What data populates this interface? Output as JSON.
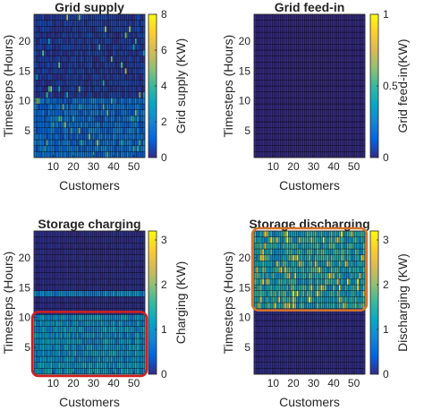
{
  "chart_data": [
    {
      "type": "heatmap",
      "title": "Grid supply",
      "xlabel": "Customers",
      "ylabel": "Timesteps (Hours)",
      "colorbar_label": "Grid supply (KW)",
      "x_ticks": [
        "10",
        "20",
        "30",
        "40",
        "50"
      ],
      "y_ticks": [
        "5",
        "10",
        "15",
        "20"
      ],
      "colorbar_ticks": [
        "0",
        "2",
        "4",
        "6",
        "8"
      ],
      "x_range": [
        1,
        55
      ],
      "y_range": [
        1,
        24
      ],
      "c_range": [
        0,
        8
      ],
      "pattern": "hours 1-10 moderate (0.5-2.5 KW) with sparse peaks; hours 11-24 low (0-0.8 KW) with sparse spikes up to ~5 KW"
    },
    {
      "type": "heatmap",
      "title": "Grid feed-in",
      "xlabel": "Customers",
      "ylabel": "Timesteps (Hours)",
      "colorbar_label": "Grid feed-in(KW)",
      "x_ticks": [
        "10",
        "20",
        "30",
        "40",
        "50"
      ],
      "y_ticks": [
        "5",
        "10",
        "15",
        "20"
      ],
      "colorbar_ticks": [
        "0",
        "0.5",
        "1"
      ],
      "x_range": [
        1,
        55
      ],
      "y_range": [
        1,
        24
      ],
      "c_range": [
        0,
        1
      ],
      "pattern": "all values 0 KW"
    },
    {
      "type": "heatmap",
      "title": "Storage charging",
      "xlabel": "Customers",
      "ylabel": "Timesteps (Hours)",
      "colorbar_label": "Charging (KW)",
      "x_ticks": [
        "10",
        "20",
        "30",
        "40",
        "50"
      ],
      "y_ticks": [
        "5",
        "10",
        "15",
        "20"
      ],
      "colorbar_ticks": [
        "0",
        "1",
        "2",
        "3"
      ],
      "x_range": [
        1,
        55
      ],
      "y_range": [
        1,
        24
      ],
      "c_range": [
        0,
        3.2
      ],
      "pattern": "hours 1-10 charging ~0.6-1.4 KW; hour 14 ~0.8 KW; other hours ~0 KW",
      "highlight": {
        "y_range": [
          1,
          10
        ],
        "color": "#d42020"
      }
    },
    {
      "type": "heatmap",
      "title": "Storage discharging",
      "xlabel": "Customers",
      "ylabel": "Timesteps (Hours)",
      "colorbar_label": "Discharging (KW)",
      "x_ticks": [
        "10",
        "20",
        "30",
        "40",
        "50"
      ],
      "y_ticks": [
        "5",
        "10",
        "15",
        "20"
      ],
      "colorbar_ticks": [
        "0",
        "1",
        "2",
        "3"
      ],
      "x_range": [
        1,
        55
      ],
      "y_range": [
        1,
        24
      ],
      "c_range": [
        0,
        3.2
      ],
      "pattern": "hours 12-24 discharging ~0.8-2 KW with peaks near 3 KW; hours 1-11 ~0 KW",
      "highlight": {
        "y_range": [
          12,
          24
        ],
        "color": "#d8752b"
      }
    }
  ],
  "colors": {
    "grid_line": "#000000",
    "colormap": "parula"
  }
}
